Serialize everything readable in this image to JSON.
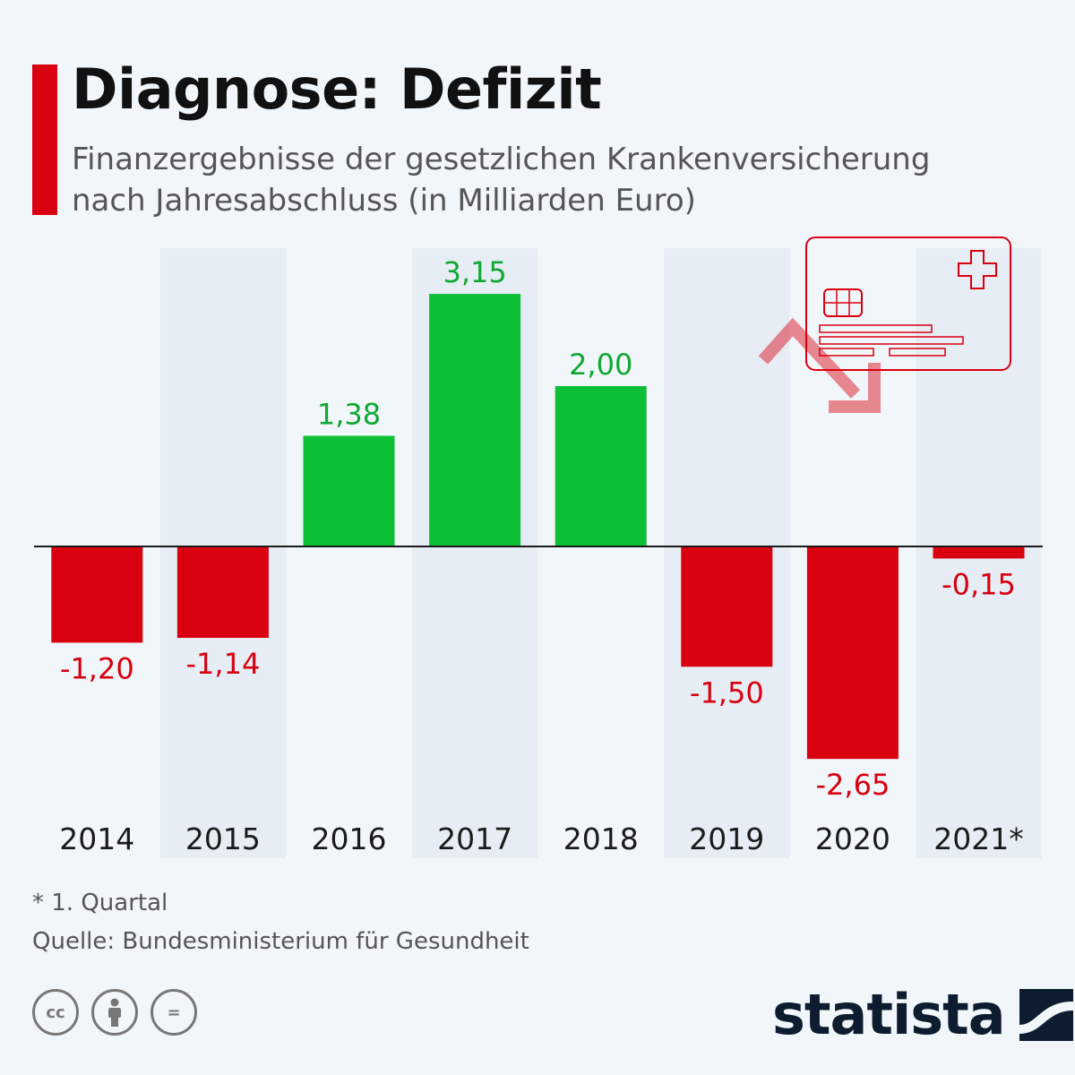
{
  "header": {
    "title": "Diagnose: Defizit",
    "subtitle_line1": "Finanzergebnisse der gesetzlichen Krankenversicherung",
    "subtitle_line2": "nach Jahresabschluss (in Milliarden Euro)"
  },
  "colors": {
    "positive": "#0cbf35",
    "negative": "#d9000f",
    "band": "#e6edf5",
    "accent": "#d9000f",
    "background": "#f1f6fa"
  },
  "chart_data": {
    "type": "bar",
    "categories": [
      "2014",
      "2015",
      "2016",
      "2017",
      "2018",
      "2019",
      "2020",
      "2021*"
    ],
    "values": [
      -1.2,
      -1.14,
      1.38,
      3.15,
      2.0,
      -1.5,
      -2.65,
      -0.15
    ],
    "value_labels": [
      "-1,20",
      "-1,14",
      "1,38",
      "3,15",
      "2,00",
      "-1,50",
      "-2,65",
      "-0,15"
    ],
    "title": "Diagnose: Defizit",
    "ylabel": "Milliarden Euro",
    "ylim": [
      -3,
      3.7
    ],
    "grid": false,
    "legend": "none"
  },
  "footer": {
    "footnote": "* 1. Quartal",
    "source": "Quelle: Bundesministerium für Gesundheit",
    "brand": "statista",
    "license_icons": [
      "cc",
      "BY",
      "="
    ]
  },
  "icons": [
    "creditcard-icon",
    "trend-down-arrow-icon",
    "statista-logo-icon"
  ]
}
